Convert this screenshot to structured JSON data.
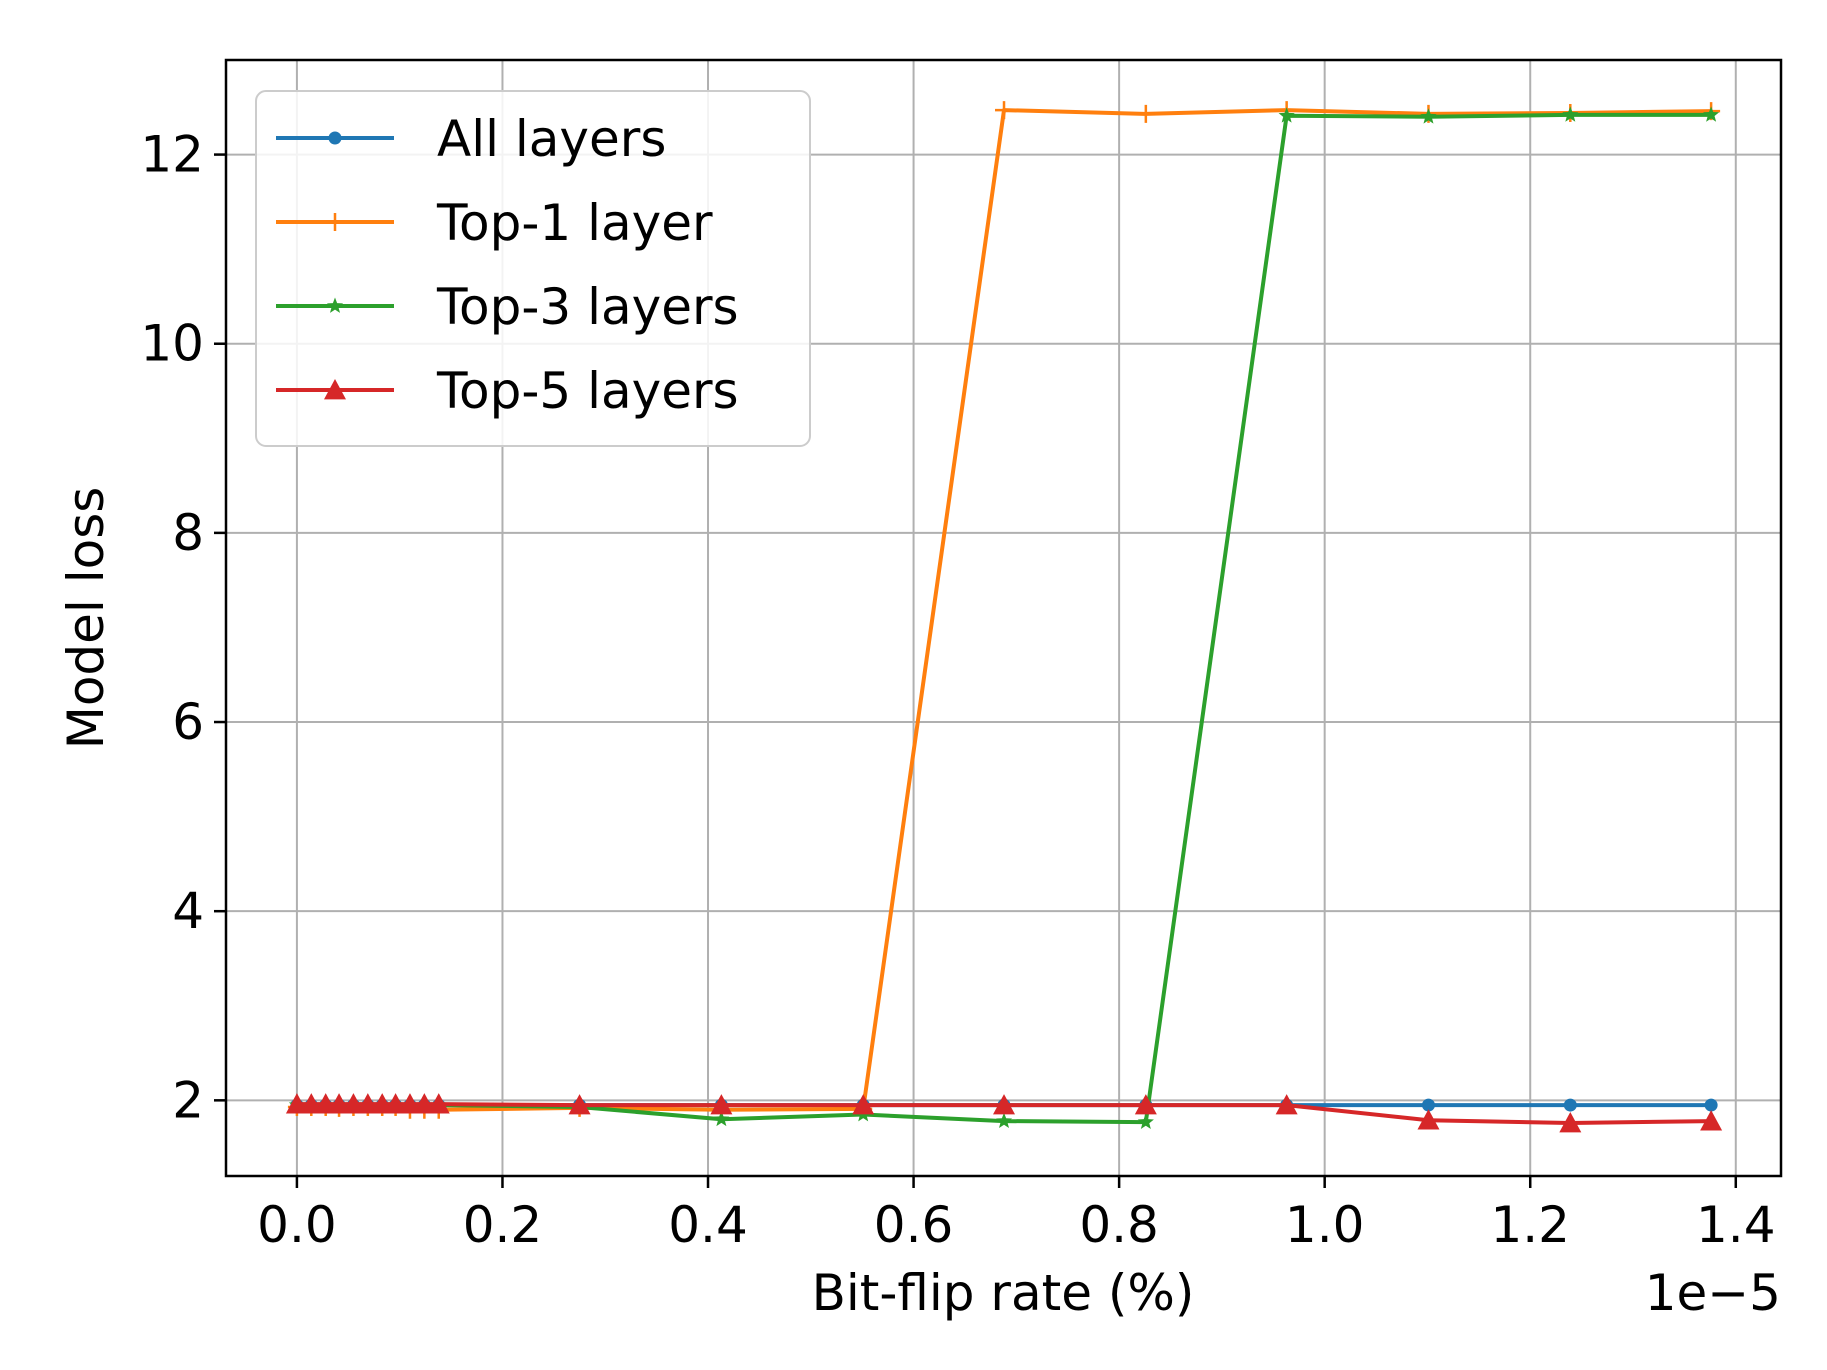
{
  "chart_data": {
    "type": "line",
    "title": "",
    "xlabel": "Bit-flip rate (%)",
    "ylabel": "Model loss",
    "x_offset_label": "1e−5",
    "xlim": [
      -0.069,
      1.444
    ],
    "ylim": [
      1.2,
      13.0
    ],
    "xticks": [
      0.0,
      0.2,
      0.4,
      0.6,
      0.8,
      1.0,
      1.2,
      1.4
    ],
    "xtick_labels": [
      "0.0",
      "0.2",
      "0.4",
      "0.6",
      "0.8",
      "1.0",
      "1.2",
      "1.4"
    ],
    "yticks": [
      2,
      4,
      6,
      8,
      10,
      12
    ],
    "ytick_labels": [
      "2",
      "4",
      "6",
      "8",
      "10",
      "12"
    ],
    "grid": true,
    "legend_position": "top-left",
    "series": [
      {
        "name": "All layers",
        "color": "#1f77b4",
        "marker": "dot",
        "x": [
          0.0,
          0.014,
          0.028,
          0.041,
          0.055,
          0.069,
          0.083,
          0.096,
          0.11,
          0.124,
          0.138,
          0.275,
          0.413,
          0.551,
          0.688,
          0.826,
          0.963,
          1.101,
          1.239,
          1.376
        ],
        "y": [
          1.95,
          1.95,
          1.95,
          1.95,
          1.95,
          1.95,
          1.95,
          1.95,
          1.95,
          1.95,
          1.95,
          1.95,
          1.95,
          1.95,
          1.95,
          1.95,
          1.95,
          1.95,
          1.95,
          1.95
        ]
      },
      {
        "name": "Top-1 layer",
        "color": "#ff7f0e",
        "marker": "plus",
        "x": [
          0.0,
          0.014,
          0.028,
          0.041,
          0.055,
          0.069,
          0.083,
          0.096,
          0.11,
          0.124,
          0.138,
          0.275,
          0.413,
          0.551,
          0.688,
          0.826,
          0.963,
          1.101,
          1.239,
          1.376
        ],
        "y": [
          1.93,
          1.93,
          1.93,
          1.92,
          1.93,
          1.93,
          1.93,
          1.93,
          1.9,
          1.9,
          1.9,
          1.92,
          1.9,
          1.91,
          12.47,
          12.43,
          12.47,
          12.43,
          12.44,
          12.46
        ]
      },
      {
        "name": "Top-3 layers",
        "color": "#2ca02c",
        "marker": "star",
        "x": [
          0.0,
          0.014,
          0.028,
          0.041,
          0.055,
          0.069,
          0.083,
          0.096,
          0.11,
          0.124,
          0.138,
          0.275,
          0.413,
          0.551,
          0.688,
          0.826,
          0.963,
          1.101,
          1.239,
          1.376
        ],
        "y": [
          1.95,
          1.95,
          1.95,
          1.95,
          1.95,
          1.95,
          1.95,
          1.95,
          1.95,
          1.95,
          1.95,
          1.93,
          1.8,
          1.85,
          1.78,
          1.77,
          12.41,
          12.4,
          12.42,
          12.42
        ]
      },
      {
        "name": "Top-5 layers",
        "color": "#d62728",
        "marker": "triangle",
        "x": [
          0.0,
          0.014,
          0.028,
          0.041,
          0.055,
          0.069,
          0.083,
          0.096,
          0.11,
          0.124,
          0.138,
          0.275,
          0.413,
          0.551,
          0.688,
          0.826,
          0.963,
          1.101,
          1.239,
          1.376
        ],
        "y": [
          1.96,
          1.96,
          1.96,
          1.96,
          1.96,
          1.96,
          1.96,
          1.96,
          1.96,
          1.96,
          1.96,
          1.95,
          1.95,
          1.95,
          1.95,
          1.95,
          1.95,
          1.79,
          1.76,
          1.78
        ]
      }
    ]
  }
}
